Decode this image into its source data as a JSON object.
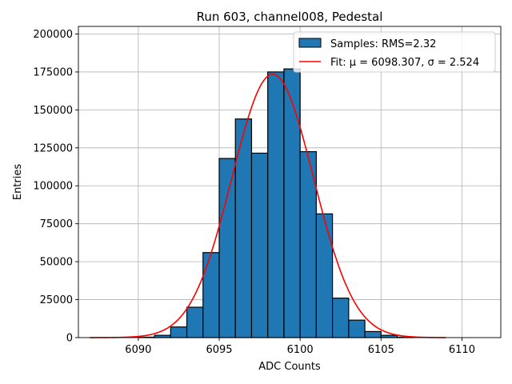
{
  "chart_data": {
    "type": "bar",
    "title": "Run 603, channel008, Pedestal",
    "xlabel": "ADC Counts",
    "ylabel": "Entries",
    "xlim": [
      6086.3,
      6112.4
    ],
    "ylim": [
      0,
      205000
    ],
    "xticks": [
      6090,
      6095,
      6100,
      6105,
      6110
    ],
    "yticks": [
      0,
      25000,
      50000,
      75000,
      100000,
      125000,
      150000,
      175000,
      200000
    ],
    "grid": true,
    "legend_position": "top-right",
    "bins": {
      "edges": [
        6088,
        6089,
        6090,
        6091,
        6092,
        6093,
        6094,
        6095,
        6096,
        6097,
        6098,
        6099,
        6100,
        6101,
        6102,
        6103,
        6104,
        6105,
        6106,
        6107,
        6108,
        6109,
        6110,
        6111
      ],
      "counts": [
        0,
        0,
        300,
        1500,
        7000,
        20000,
        56000,
        118000,
        144000,
        121500,
        175000,
        177000,
        122500,
        81500,
        26000,
        11500,
        4000,
        1500,
        300,
        0,
        0,
        0,
        0
      ]
    },
    "series": [
      {
        "name": "Samples: RMS=2.32",
        "type": "histogram",
        "color": "#1f77b4",
        "edgecolor": "#000000"
      },
      {
        "name": "Fit: μ = 6098.307, σ = 2.524",
        "type": "line",
        "color": "#ff0000",
        "function": "gaussian",
        "amplitude": 173500,
        "mu": 6098.307,
        "sigma": 2.524,
        "x_range": [
          6087,
          6109
        ]
      }
    ]
  }
}
